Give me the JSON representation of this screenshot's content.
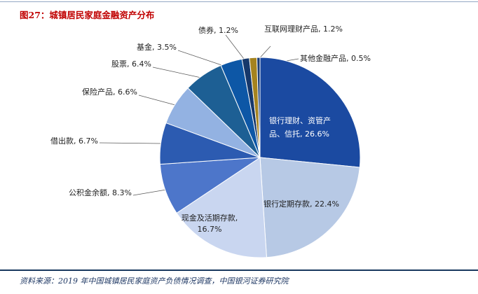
{
  "header": {
    "title": "图27：城镇居民家庭金融资产分布"
  },
  "footer": {
    "source": "资料来源：2019 年中国城镇居民家庭资产负债情况调查，中国银河证券研究院"
  },
  "chart_data": {
    "type": "pie",
    "title": "城镇居民家庭金融资产分布",
    "unit": "%",
    "start_angle_deg": 0,
    "direction": "clockwise",
    "legend_position": "none",
    "slices": [
      {
        "label": "银行理财、资管产品、信托",
        "value": 26.6,
        "color": "#1b4aa1",
        "display": "银行理财、资管产品、信托, 26.6%"
      },
      {
        "label": "银行定期存款",
        "value": 22.4,
        "color": "#b7c9e5",
        "display": "银行定期存款, 22.4%"
      },
      {
        "label": "现金及活期存款",
        "value": 16.7,
        "color": "#c9d6f0",
        "display": "现金及活期存款, 16.7%"
      },
      {
        "label": "公积金余额",
        "value": 8.3,
        "color": "#4d76ca",
        "display": "公积金余额, 8.3%"
      },
      {
        "label": "借出款",
        "value": 6.7,
        "color": "#2c5bb1",
        "display": "借出款, 6.7%"
      },
      {
        "label": "保险产品",
        "value": 6.6,
        "color": "#93b2e2",
        "display": "保险产品, 6.6%"
      },
      {
        "label": "股票",
        "value": 6.4,
        "color": "#1d5f94",
        "display": "股票, 6.4%"
      },
      {
        "label": "基金",
        "value": 3.5,
        "color": "#0d57a6",
        "display": "基金, 3.5%"
      },
      {
        "label": "债券",
        "value": 1.2,
        "color": "#16386b",
        "display": "债券, 1.2%"
      },
      {
        "label": "互联网理财产品",
        "value": 1.2,
        "color": "#a5831f",
        "display": "互联网理财产品, 1.2%"
      },
      {
        "label": "其他金融产品",
        "value": 0.5,
        "color": "#1c3d74",
        "display": "其他金融产品, 0.5%"
      }
    ]
  }
}
